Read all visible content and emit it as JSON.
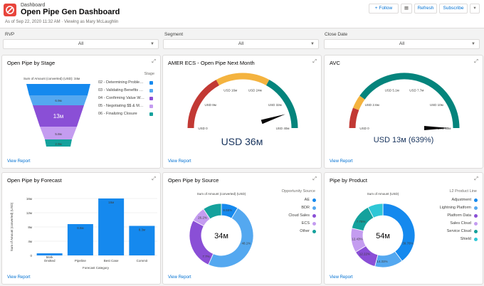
{
  "header": {
    "object_label": "Dashboard",
    "title": "Open Pipe Gen Dashboard",
    "subtitle": "As of Sep 22, 2020 11:32 AM · Viewing as Mary McLaughlin",
    "buttons": {
      "follow": "+ Follow",
      "refresh": "Refresh",
      "subscribe": "Subscribe"
    }
  },
  "filters": [
    {
      "label": "RVP",
      "value": "All"
    },
    {
      "label": "Segment",
      "value": "All"
    },
    {
      "label": "Close Date",
      "value": "All"
    }
  ],
  "view_report": "View Report",
  "cards": {
    "stage": {
      "title": "Open Pipe by Stage",
      "subtitle": "Sum of Amount (converted) (USD): 34м",
      "legend_title": "Stage",
      "segment_labels": [
        "6.9м",
        "13м",
        "5.8м",
        "2.9м"
      ],
      "legend": [
        {
          "label": "02 - Determining Proble…",
          "color": "#1589ee"
        },
        {
          "label": "03 - Validating Benefits …",
          "color": "#54a8f0"
        },
        {
          "label": "04 - Confirming Value W…",
          "color": "#8a4fd6"
        },
        {
          "label": "05 - Negotiating $$ & M…",
          "color": "#c49cf0"
        },
        {
          "label": "06 - Finalizing Closure",
          "color": "#14a19c"
        }
      ]
    },
    "amer": {
      "title": "AMER ECS - Open Pipe Next Month",
      "value": "USD 36м",
      "gauge_value": 36,
      "gauge_max": 40,
      "ticks": [
        "USD 0",
        "USD 8м",
        "USD 16м",
        "USD 24м",
        "USD 32м",
        "USD 40м"
      ]
    },
    "avc": {
      "title": "AVC",
      "value": "USD 13м (639%)",
      "gauge_value": 13,
      "gauge_max": 13,
      "ticks": [
        "USD 0",
        "USD 2.6м",
        "USD 5.1м",
        "USD 7.7м",
        "USD 10м",
        "USD 13м"
      ]
    },
    "forecast": {
      "title": "Open Pipe by Forecast"
    },
    "source": {
      "title": "Open Pipe by Source",
      "subtitle": "Sum of Amount (converted) (USD)",
      "center": "34м",
      "legend_title": "Opportunity Source",
      "slice_labels": [
        "8.55%",
        "48.1%",
        "7.7%",
        "26.2%"
      ]
    },
    "product": {
      "title": "Pipe by Product",
      "subtitle": "Sum of Amount (USD)",
      "center": "54м",
      "legend_title": "L2 Product Line",
      "slice_labels": [
        "39.76%",
        "14.31%",
        "12.22%",
        "12.43%",
        "7.75%"
      ]
    }
  },
  "colors": {
    "blue": "#1589ee",
    "lightblue": "#54a8f0",
    "purple": "#8a4fd6",
    "lavender": "#c49cf0",
    "teal": "#14a19c",
    "cyan": "#2ec7d6",
    "red": "#c23934",
    "amber": "#f4b33f",
    "darkteal": "#04847c"
  },
  "chart_data": [
    {
      "type": "bar",
      "title": "",
      "categories": [
        "Omitted",
        "Pipeline",
        "Best Case",
        "Commit"
      ],
      "values": [
        0.584,
        8.8,
        16,
        8.3
      ],
      "value_labels": [
        "584k",
        "8.8м",
        "16м",
        "8.3м"
      ],
      "xlabel": "Forecast Category",
      "ylabel": "Sum of Amount (converted) (USD)",
      "ylim": [
        0,
        16
      ],
      "yticks": [
        "0",
        "4м",
        "8м",
        "12м",
        "16м"
      ],
      "grid": true
    },
    {
      "type": "pie",
      "title": "",
      "categories": [
        "AE",
        "BDR",
        "Cloud Sales",
        "ECS",
        "Other"
      ],
      "values": [
        8.55,
        48.1,
        26.2,
        7.7,
        9.45
      ],
      "colors": [
        "#1589ee",
        "#54a8f0",
        "#8a4fd6",
        "#c49cf0",
        "#14a19c"
      ]
    },
    {
      "type": "pie",
      "title": "",
      "categories": [
        "Adjustment",
        "Lightning Platform",
        "Platform Data",
        "Sales Cloud",
        "Service Cloud",
        "Shield"
      ],
      "values": [
        39.76,
        14.31,
        12.22,
        12.43,
        13.53,
        7.75
      ],
      "colors": [
        "#1589ee",
        "#54a8f0",
        "#8a4fd6",
        "#c49cf0",
        "#14a19c",
        "#2ec7d6"
      ]
    }
  ]
}
